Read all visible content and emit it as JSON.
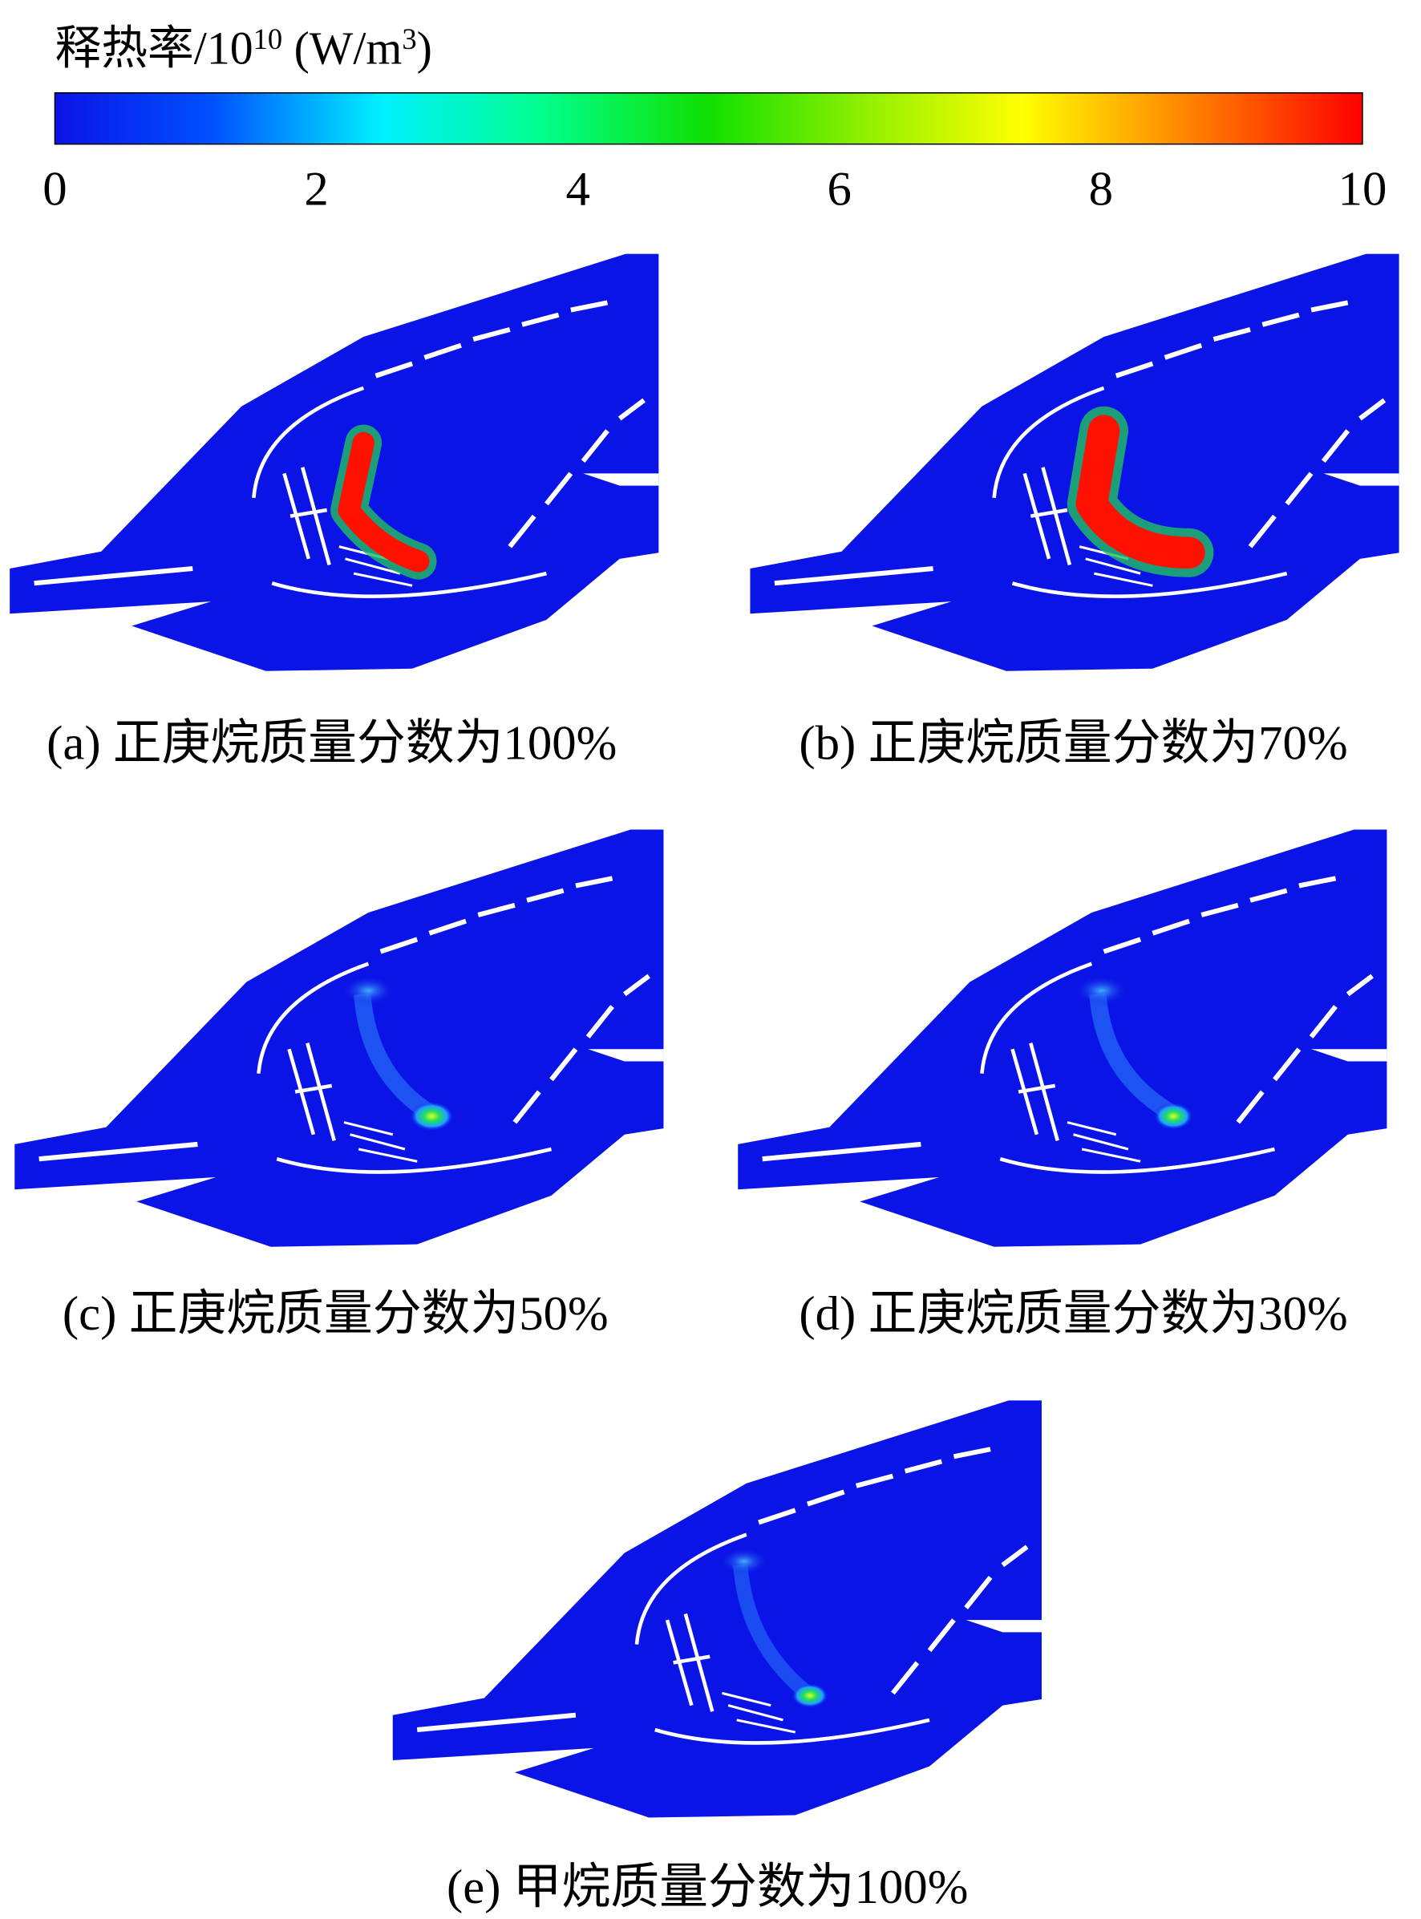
{
  "colorbar": {
    "title_parts": [
      "释热率/10",
      "10",
      " (W/m",
      "3",
      ")"
    ],
    "lim": [
      0,
      10
    ],
    "ticks": [
      0,
      2,
      4,
      6,
      8,
      10
    ]
  },
  "panels": [
    {
      "caption": "(a) 正庚烷质量分数为100%"
    },
    {
      "caption": "(b) 正庚烷质量分数为70%"
    },
    {
      "caption": "(c) 正庚烷质量分数为50%"
    },
    {
      "caption": "(d) 正庚烷质量分数为30%"
    },
    {
      "caption": "(e) 甲烷质量分数为100%"
    }
  ]
}
